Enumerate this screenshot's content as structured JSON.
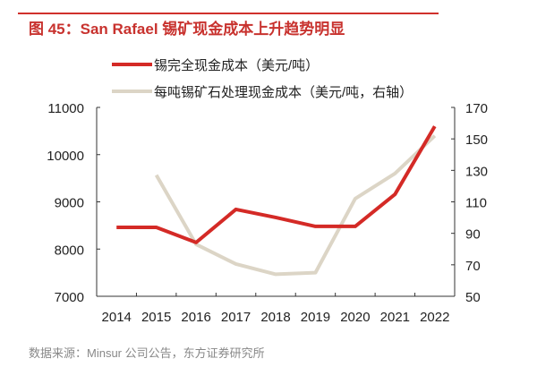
{
  "title": "图 45：San Rafael 锡矿现金成本上升趋势明显",
  "source": "数据来源：Minsur 公司公告，东方证券研究所",
  "chart_data": {
    "type": "line",
    "categories": [
      "2014",
      "2015",
      "2016",
      "2017",
      "2018",
      "2019",
      "2020",
      "2021",
      "2022"
    ],
    "series": [
      {
        "name": "锡完全现金成本（美元/吨）",
        "axis": "left",
        "color": "#d42a26",
        "values": [
          8460,
          8460,
          8140,
          8840,
          8670,
          8480,
          8480,
          9160,
          10600
        ]
      },
      {
        "name": "每吨锡矿石处理现金成本（美元/吨，右轴）",
        "axis": "right",
        "color": "#dcd5c6",
        "values": [
          null,
          127,
          83,
          70.5,
          64,
          65,
          112,
          128,
          152
        ]
      }
    ],
    "yleft": {
      "lim": [
        7000,
        11000
      ],
      "ticks": [
        "7000",
        "8000",
        "9000",
        "10000",
        "11000"
      ]
    },
    "yright": {
      "lim": [
        50,
        170
      ],
      "ticks": [
        "50",
        "70",
        "90",
        "110",
        "130",
        "150",
        "170"
      ]
    },
    "grid": false,
    "legend": "top"
  }
}
